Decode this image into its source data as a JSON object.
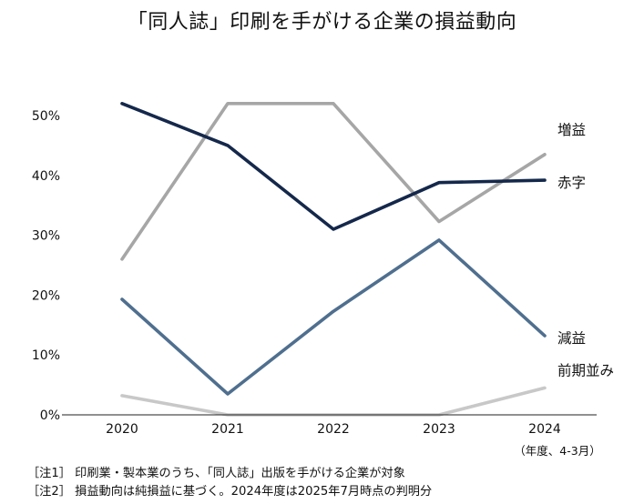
{
  "chart_data": {
    "type": "line",
    "title": "「同人誌」印刷を手がける企業の損益動向",
    "x": [
      "2020",
      "2021",
      "2022",
      "2023",
      "2024"
    ],
    "x_unit": "（年度、4-3月）",
    "ylim": [
      0,
      50
    ],
    "yticks": [
      0,
      10,
      20,
      30,
      40,
      50
    ],
    "ytick_labels": [
      "0%",
      "10%",
      "20%",
      "30%",
      "40%",
      "50%"
    ],
    "grid": false,
    "series": [
      {
        "name": "増益",
        "color": "#a6a6a6",
        "values": [
          26.0,
          52.0,
          52.0,
          32.3,
          43.5
        ]
      },
      {
        "name": "赤字",
        "color": "#14284b",
        "values": [
          52.0,
          45.0,
          31.0,
          38.8,
          39.2
        ]
      },
      {
        "name": "減益",
        "color": "#4f6f8f",
        "values": [
          19.3,
          3.5,
          17.3,
          29.2,
          13.2
        ]
      },
      {
        "name": "前期並み",
        "color": "#c8c8c8",
        "values": [
          3.2,
          0.0,
          0.0,
          0.0,
          4.5
        ]
      }
    ],
    "notes": [
      "［注1］ 印刷業・製本業のうち、「同人誌」出版を手がける企業が対象",
      "［注2］ 損益動向は純損益に基づく。2024年度は2025年7月時点の判明分"
    ]
  }
}
